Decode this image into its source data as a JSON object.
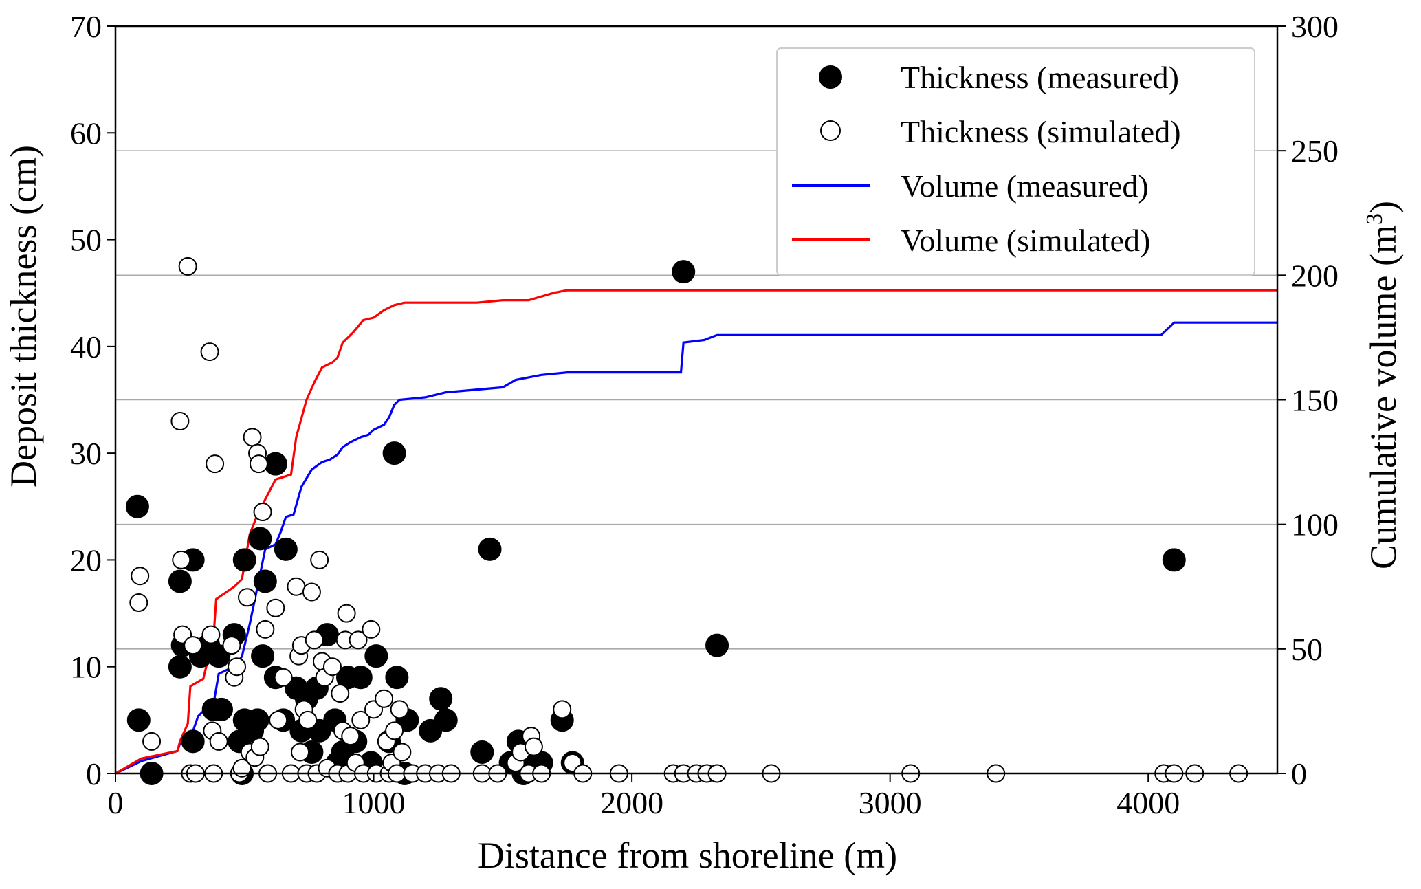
{
  "chart_data": {
    "type": "scatter",
    "title": "",
    "xlabel": "Distance from shoreline (m)",
    "ylabel": "Deposit thickness (cm)",
    "ylabel_right_prefix": "Cumulative volume (m",
    "ylabel_right_sup": "3",
    "ylabel_right_suffix": ")",
    "xlim": [
      0,
      4500
    ],
    "ylim": [
      0,
      70
    ],
    "ylim_right": [
      0,
      300
    ],
    "xticks": [
      "0",
      "1000",
      "2000",
      "3000",
      "4000"
    ],
    "yticks": [
      "0",
      "10",
      "20",
      "30",
      "40",
      "50",
      "60",
      "70"
    ],
    "yticks_right": [
      "0",
      "50",
      "100",
      "150",
      "200",
      "250",
      "300"
    ],
    "grid": "horizontal lines at right-axis ticks",
    "legend_position": "top-right",
    "legend": [
      {
        "label": "Thickness (measured)",
        "kind": "filled-circle"
      },
      {
        "label": "Thickness (simulated)",
        "kind": "open-circle"
      },
      {
        "label": "Volume (measured)",
        "kind": "line",
        "color": "#0000ff"
      },
      {
        "label": "Volume (simulated)",
        "kind": "line",
        "color": "#ff0000"
      }
    ],
    "thickness_measured": [
      [
        85,
        25
      ],
      [
        90,
        5
      ],
      [
        140,
        0
      ],
      [
        250,
        18
      ],
      [
        250,
        10
      ],
      [
        260,
        12
      ],
      [
        300,
        3
      ],
      [
        300,
        20
      ],
      [
        330,
        11
      ],
      [
        360,
        12
      ],
      [
        380,
        6
      ],
      [
        400,
        11
      ],
      [
        410,
        6
      ],
      [
        460,
        13
      ],
      [
        480,
        3
      ],
      [
        490,
        0
      ],
      [
        500,
        20
      ],
      [
        500,
        5
      ],
      [
        530,
        4
      ],
      [
        550,
        5
      ],
      [
        560,
        22
      ],
      [
        570,
        11
      ],
      [
        580,
        18
      ],
      [
        620,
        29
      ],
      [
        620,
        9
      ],
      [
        650,
        5
      ],
      [
        660,
        21
      ],
      [
        700,
        8
      ],
      [
        720,
        4
      ],
      [
        740,
        7
      ],
      [
        760,
        2
      ],
      [
        780,
        8
      ],
      [
        790,
        4
      ],
      [
        820,
        13
      ],
      [
        850,
        5
      ],
      [
        860,
        1
      ],
      [
        880,
        2
      ],
      [
        900,
        9
      ],
      [
        930,
        3
      ],
      [
        950,
        9
      ],
      [
        990,
        1
      ],
      [
        1010,
        11
      ],
      [
        1060,
        3
      ],
      [
        1080,
        30
      ],
      [
        1090,
        9
      ],
      [
        1120,
        0
      ],
      [
        1130,
        5
      ],
      [
        1220,
        4
      ],
      [
        1260,
        7
      ],
      [
        1280,
        5
      ],
      [
        1420,
        2
      ],
      [
        1450,
        21
      ],
      [
        1530,
        1
      ],
      [
        1560,
        3
      ],
      [
        1580,
        0
      ],
      [
        1620,
        1
      ],
      [
        1650,
        1
      ],
      [
        1730,
        5
      ],
      [
        1770,
        1
      ],
      [
        2200,
        47
      ],
      [
        2330,
        12
      ],
      [
        4100,
        20
      ]
    ],
    "thickness_simulated": [
      [
        90,
        16
      ],
      [
        95,
        18.5
      ],
      [
        140,
        3
      ],
      [
        250,
        33
      ],
      [
        255,
        20
      ],
      [
        260,
        13
      ],
      [
        280,
        47.5
      ],
      [
        290,
        0
      ],
      [
        300,
        12
      ],
      [
        310,
        0
      ],
      [
        365,
        39.5
      ],
      [
        370,
        13
      ],
      [
        375,
        4
      ],
      [
        380,
        0
      ],
      [
        385,
        29
      ],
      [
        400,
        3
      ],
      [
        450,
        12
      ],
      [
        460,
        9
      ],
      [
        470,
        10
      ],
      [
        480,
        0
      ],
      [
        490,
        0.5
      ],
      [
        510,
        16.5
      ],
      [
        520,
        2
      ],
      [
        530,
        31.5
      ],
      [
        540,
        1.5
      ],
      [
        550,
        30
      ],
      [
        555,
        29
      ],
      [
        560,
        2.5
      ],
      [
        570,
        24.5
      ],
      [
        580,
        13.5
      ],
      [
        590,
        0
      ],
      [
        620,
        15.5
      ],
      [
        630,
        5
      ],
      [
        650,
        9
      ],
      [
        680,
        0
      ],
      [
        700,
        17.5
      ],
      [
        710,
        11
      ],
      [
        715,
        2
      ],
      [
        720,
        12
      ],
      [
        730,
        6
      ],
      [
        740,
        0
      ],
      [
        745,
        5
      ],
      [
        760,
        17
      ],
      [
        770,
        12.5
      ],
      [
        780,
        0
      ],
      [
        790,
        20
      ],
      [
        800,
        10.5
      ],
      [
        810,
        9
      ],
      [
        820,
        0.5
      ],
      [
        840,
        10
      ],
      [
        860,
        0
      ],
      [
        870,
        7.5
      ],
      [
        880,
        4
      ],
      [
        890,
        12.5
      ],
      [
        895,
        15
      ],
      [
        900,
        0
      ],
      [
        910,
        3.5
      ],
      [
        930,
        1
      ],
      [
        940,
        12.5
      ],
      [
        950,
        5
      ],
      [
        960,
        0
      ],
      [
        990,
        13.5
      ],
      [
        1000,
        6
      ],
      [
        1010,
        0
      ],
      [
        1040,
        7
      ],
      [
        1050,
        3
      ],
      [
        1060,
        0
      ],
      [
        1070,
        1
      ],
      [
        1080,
        4
      ],
      [
        1090,
        0
      ],
      [
        1100,
        6
      ],
      [
        1110,
        2
      ],
      [
        1150,
        0
      ],
      [
        1200,
        0
      ],
      [
        1250,
        0
      ],
      [
        1300,
        0
      ],
      [
        1420,
        0
      ],
      [
        1480,
        0
      ],
      [
        1550,
        1
      ],
      [
        1570,
        2
      ],
      [
        1600,
        0
      ],
      [
        1610,
        3.5
      ],
      [
        1620,
        2.5
      ],
      [
        1650,
        0
      ],
      [
        1730,
        6
      ],
      [
        1770,
        1
      ],
      [
        1810,
        0
      ],
      [
        1950,
        0
      ],
      [
        2160,
        0
      ],
      [
        2200,
        0
      ],
      [
        2250,
        0
      ],
      [
        2290,
        0
      ],
      [
        2330,
        0
      ],
      [
        2540,
        0
      ],
      [
        3080,
        0
      ],
      [
        3410,
        0
      ],
      [
        4060,
        0
      ],
      [
        4100,
        0
      ],
      [
        4180,
        0
      ],
      [
        4350,
        0
      ]
    ],
    "volume_measured": [
      [
        0,
        0
      ],
      [
        100,
        5
      ],
      [
        240,
        9
      ],
      [
        260,
        15
      ],
      [
        300,
        17
      ],
      [
        320,
        23
      ],
      [
        340,
        25
      ],
      [
        380,
        28
      ],
      [
        400,
        40
      ],
      [
        460,
        43
      ],
      [
        490,
        47
      ],
      [
        520,
        60
      ],
      [
        550,
        75
      ],
      [
        580,
        90
      ],
      [
        620,
        92
      ],
      [
        640,
        97
      ],
      [
        660,
        103
      ],
      [
        690,
        104
      ],
      [
        720,
        115
      ],
      [
        760,
        122
      ],
      [
        800,
        125
      ],
      [
        830,
        126
      ],
      [
        860,
        128
      ],
      [
        880,
        131
      ],
      [
        910,
        133
      ],
      [
        950,
        135
      ],
      [
        980,
        136
      ],
      [
        1000,
        138
      ],
      [
        1040,
        140
      ],
      [
        1060,
        143
      ],
      [
        1080,
        148
      ],
      [
        1100,
        150
      ],
      [
        1200,
        151
      ],
      [
        1280,
        153
      ],
      [
        1500,
        155
      ],
      [
        1550,
        158
      ],
      [
        1650,
        160
      ],
      [
        1750,
        161
      ],
      [
        2000,
        161
      ],
      [
        2190,
        161
      ],
      [
        2200,
        173
      ],
      [
        2280,
        174
      ],
      [
        2330,
        176
      ],
      [
        2600,
        176
      ],
      [
        3500,
        176
      ],
      [
        4050,
        176
      ],
      [
        4100,
        181
      ],
      [
        4500,
        181
      ]
    ],
    "volume_simulated": [
      [
        0,
        0
      ],
      [
        100,
        6
      ],
      [
        240,
        9
      ],
      [
        250,
        13
      ],
      [
        280,
        20
      ],
      [
        290,
        35
      ],
      [
        340,
        38
      ],
      [
        380,
        55
      ],
      [
        390,
        70
      ],
      [
        460,
        75
      ],
      [
        490,
        78
      ],
      [
        520,
        96
      ],
      [
        550,
        104
      ],
      [
        580,
        110
      ],
      [
        620,
        118
      ],
      [
        650,
        119
      ],
      [
        680,
        120
      ],
      [
        700,
        135
      ],
      [
        740,
        150
      ],
      [
        770,
        157
      ],
      [
        800,
        163
      ],
      [
        840,
        165
      ],
      [
        860,
        167
      ],
      [
        880,
        173
      ],
      [
        920,
        177
      ],
      [
        960,
        182
      ],
      [
        1000,
        183
      ],
      [
        1040,
        186
      ],
      [
        1080,
        188
      ],
      [
        1120,
        189
      ],
      [
        1400,
        189
      ],
      [
        1500,
        190
      ],
      [
        1600,
        190
      ],
      [
        1700,
        193
      ],
      [
        1750,
        194
      ],
      [
        2500,
        194
      ],
      [
        4500,
        194
      ]
    ]
  }
}
